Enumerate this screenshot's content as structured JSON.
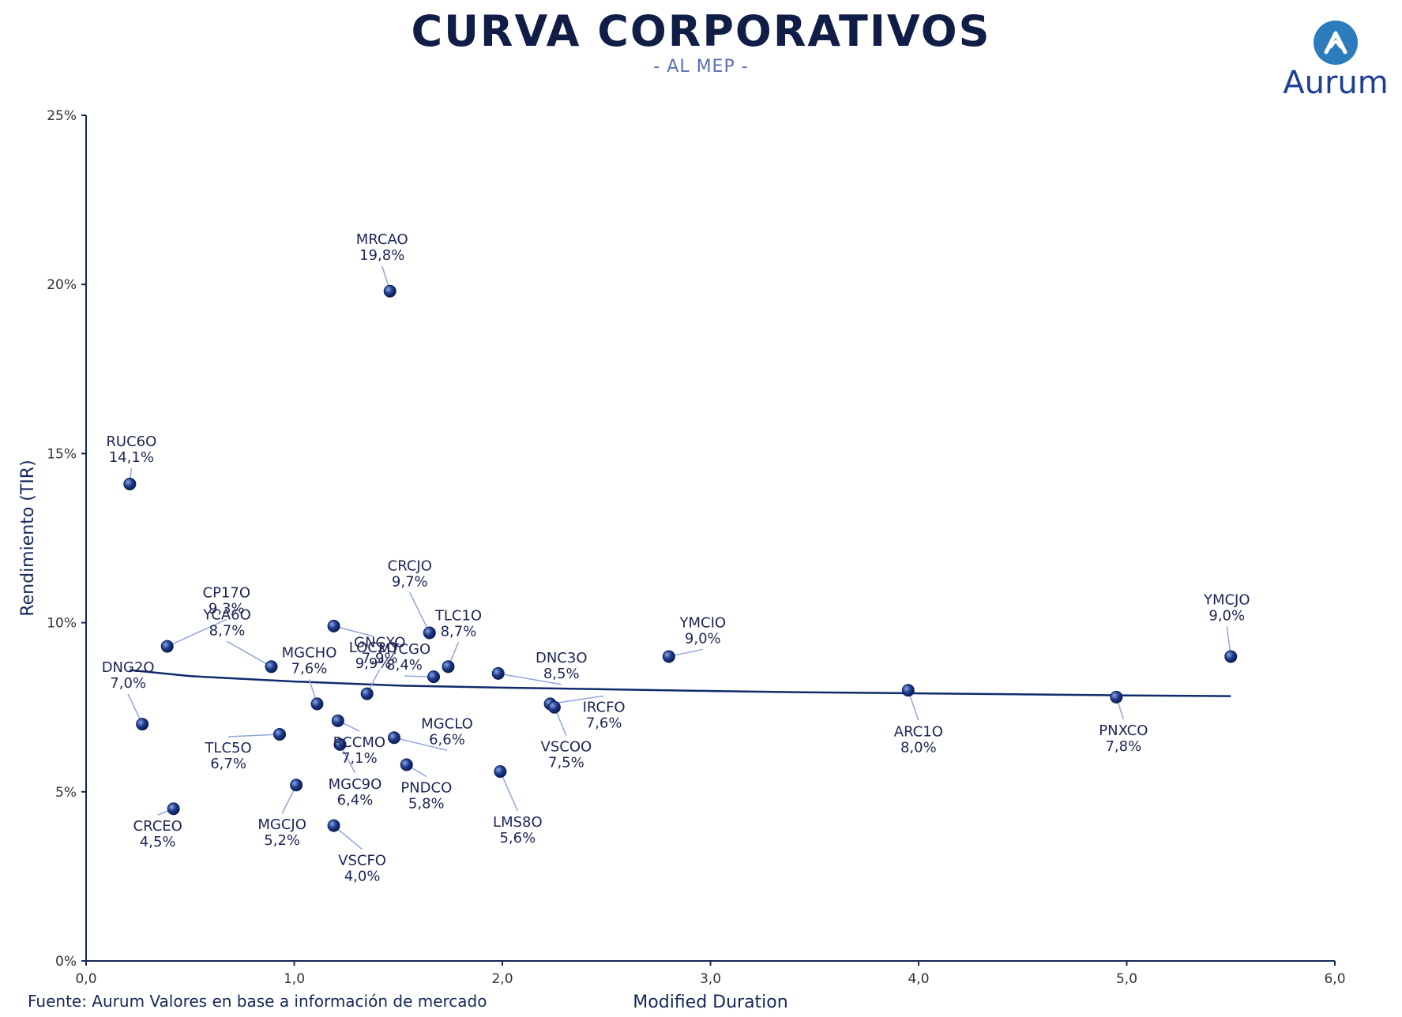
{
  "header": {
    "title": "CURVA CORPORATIVOS",
    "subtitle": "- AL MEP -",
    "brand": "Aurum"
  },
  "footer": {
    "source": "Fuente: Aurum Valores en base a información de mercado"
  },
  "colors": {
    "title": "#0f1d47",
    "subtitle": "#5b6fb5",
    "point": "#1e3a8a",
    "trend": "#102a6b",
    "leader": "#8fa6d8",
    "logo_circle": "#2b7bbd"
  },
  "chart_data": {
    "type": "scatter",
    "title": "CURVA CORPORATIVOS",
    "subtitle": "- AL MEP -",
    "xlabel": "Modified Duration",
    "ylabel": "Rendimiento (TIR)",
    "xlim": [
      0,
      6
    ],
    "ylim": [
      0,
      25
    ],
    "x_ticks": [
      "0,0",
      "1,0",
      "2,0",
      "3,0",
      "4,0",
      "5,0",
      "6,0"
    ],
    "y_ticks": [
      "0%",
      "5%",
      "10%",
      "15%",
      "20%",
      "25%"
    ],
    "grid": false,
    "legend": "none",
    "points": [
      {
        "name": "MRCAO",
        "label": "19,8%",
        "x": 1.46,
        "y": 19.8
      },
      {
        "name": "RUC6O",
        "label": "14,1%",
        "x": 0.21,
        "y": 14.1
      },
      {
        "name": "CP17O",
        "label": "9,3%",
        "x": 0.39,
        "y": 9.3
      },
      {
        "name": "YCA6O",
        "label": "8,7%",
        "x": 0.89,
        "y": 8.7
      },
      {
        "name": "DNG2O",
        "label": "7,0%",
        "x": 0.27,
        "y": 7.0
      },
      {
        "name": "CRCEO",
        "label": "4,5%",
        "x": 0.42,
        "y": 4.5
      },
      {
        "name": "TLC5O",
        "label": "6,7%",
        "x": 0.93,
        "y": 6.7
      },
      {
        "name": "MGCJO",
        "label": "5,2%",
        "x": 1.01,
        "y": 5.2
      },
      {
        "name": "MGCHO",
        "label": "7,6%",
        "x": 1.11,
        "y": 7.6
      },
      {
        "name": "LOC2O",
        "label": "9,9%",
        "x": 1.19,
        "y": 9.9
      },
      {
        "name": "RCCMO",
        "label": "7,1%",
        "x": 1.21,
        "y": 7.1
      },
      {
        "name": "MGC9O",
        "label": "6,4%",
        "x": 1.22,
        "y": 6.4
      },
      {
        "name": "VSCFO",
        "label": "4,0%",
        "x": 1.19,
        "y": 4.0
      },
      {
        "name": "GNCXO",
        "label": "7,9%",
        "x": 1.35,
        "y": 7.9
      },
      {
        "name": "CRCJO",
        "label": "9,7%",
        "x": 1.65,
        "y": 9.7
      },
      {
        "name": "MTCGO",
        "label": "8,4%",
        "x": 1.67,
        "y": 8.4
      },
      {
        "name": "TLC1O",
        "label": "8,7%",
        "x": 1.74,
        "y": 8.7
      },
      {
        "name": "MGCLO",
        "label": "6,6%",
        "x": 1.48,
        "y": 6.6
      },
      {
        "name": "PNDCO",
        "label": "5,8%",
        "x": 1.54,
        "y": 5.8
      },
      {
        "name": "DNC3O",
        "label": "8,5%",
        "x": 1.98,
        "y": 8.5
      },
      {
        "name": "LMS8O",
        "label": "5,6%",
        "x": 1.99,
        "y": 5.6
      },
      {
        "name": "IRCFO",
        "label": "7,6%",
        "x": 2.23,
        "y": 7.6
      },
      {
        "name": "VSCOO",
        "label": "7,5%",
        "x": 2.25,
        "y": 7.5
      },
      {
        "name": "YMCIO",
        "label": "9,0%",
        "x": 2.8,
        "y": 9.0
      },
      {
        "name": "ARC1O",
        "label": "8,0%",
        "x": 3.95,
        "y": 8.0
      },
      {
        "name": "PNXCO",
        "label": "7,8%",
        "x": 4.95,
        "y": 7.8
      },
      {
        "name": "YMCJO",
        "label": "9,0%",
        "x": 5.5,
        "y": 9.0
      }
    ],
    "trendline": {
      "x": [
        0.21,
        0.5,
        1.0,
        1.5,
        2.0,
        2.5,
        3.0,
        3.5,
        4.0,
        4.5,
        5.0,
        5.5
      ],
      "y": [
        8.6,
        8.42,
        8.26,
        8.14,
        8.08,
        8.03,
        7.98,
        7.94,
        7.91,
        7.88,
        7.85,
        7.83
      ]
    }
  }
}
